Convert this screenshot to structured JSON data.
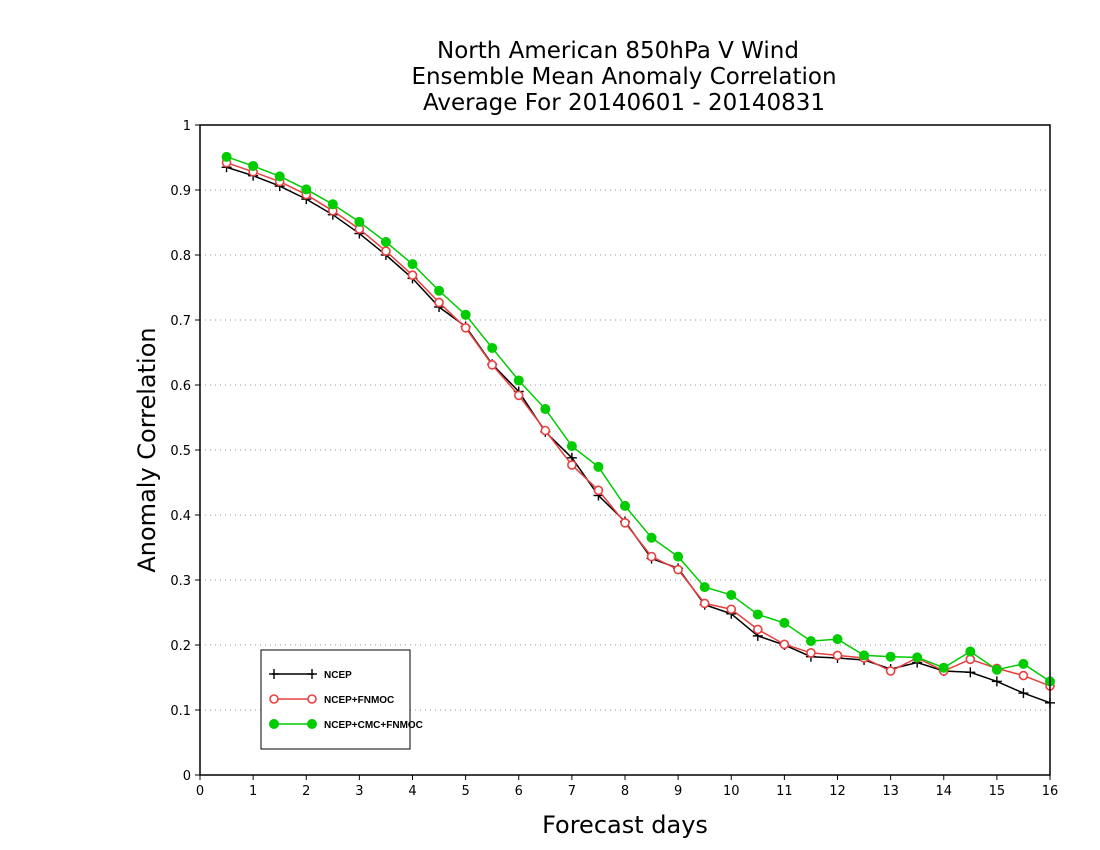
{
  "chart_data": {
    "type": "line",
    "title_lines": [
      "North American 850hPa V Wind",
      "Ensemble Mean Anomaly Correlation",
      "Average For 20140601 - 20140831"
    ],
    "xlabel": "Forecast days",
    "ylabel": "Anomaly Correlation",
    "xlim": [
      0,
      16
    ],
    "ylim": [
      0,
      1
    ],
    "xticks": [
      "0",
      "1",
      "2",
      "3",
      "4",
      "5",
      "6",
      "7",
      "8",
      "9",
      "10",
      "11",
      "12",
      "13",
      "14",
      "15",
      "16"
    ],
    "yticks": [
      "0",
      "0.1",
      "0.2",
      "0.3",
      "0.4",
      "0.5",
      "0.6",
      "0.7",
      "0.8",
      "0.9",
      "1"
    ],
    "grid": "horizontal-dotted",
    "legend_position": "bottom-left",
    "x": [
      0.5,
      1,
      1.5,
      2,
      2.5,
      3,
      3.5,
      4,
      4.5,
      5,
      5.5,
      6,
      6.5,
      7,
      7.5,
      8,
      8.5,
      9,
      9.5,
      10,
      10.5,
      11,
      11.5,
      12,
      12.5,
      13,
      13.5,
      14,
      14.5,
      15,
      15.5,
      16
    ],
    "series": [
      {
        "name": "NCEP",
        "color": "#000000",
        "marker": "plus",
        "values": [
          0.935,
          0.922,
          0.906,
          0.886,
          0.862,
          0.833,
          0.8,
          0.764,
          0.72,
          0.69,
          0.632,
          0.59,
          0.528,
          0.488,
          0.43,
          0.39,
          0.333,
          0.318,
          0.262,
          0.248,
          0.214,
          0.2,
          0.182,
          0.18,
          0.177,
          0.163,
          0.173,
          0.16,
          0.158,
          0.144,
          0.126,
          0.111
        ]
      },
      {
        "name": "NCEP+FNMOC",
        "color": "#e84040",
        "marker": "open-circle",
        "values": [
          0.942,
          0.928,
          0.913,
          0.893,
          0.868,
          0.84,
          0.806,
          0.769,
          0.727,
          0.688,
          0.631,
          0.584,
          0.53,
          0.477,
          0.438,
          0.388,
          0.336,
          0.316,
          0.264,
          0.255,
          0.224,
          0.201,
          0.188,
          0.184,
          0.18,
          0.16,
          0.18,
          0.16,
          0.178,
          0.164,
          0.153,
          0.137
        ]
      },
      {
        "name": "NCEP+CMC+FNMOC",
        "color": "#00cc00",
        "marker": "filled-circle",
        "values": [
          0.951,
          0.937,
          0.921,
          0.901,
          0.878,
          0.851,
          0.82,
          0.786,
          0.745,
          0.708,
          0.657,
          0.607,
          0.563,
          0.506,
          0.474,
          0.414,
          0.365,
          0.336,
          0.289,
          0.277,
          0.247,
          0.234,
          0.206,
          0.209,
          0.184,
          0.182,
          0.181,
          0.165,
          0.19,
          0.162,
          0.171,
          0.144
        ]
      }
    ]
  }
}
